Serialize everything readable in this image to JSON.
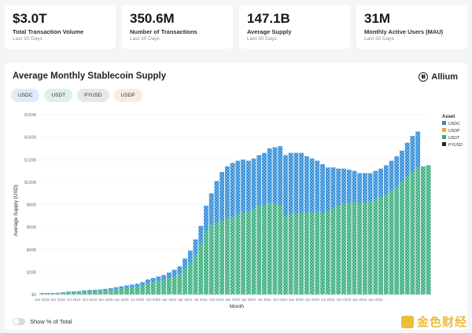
{
  "kpis": [
    {
      "value": "$3.0T",
      "label": "Total Transaction Volume",
      "sub": "Last 30 Days"
    },
    {
      "value": "350.6M",
      "label": "Number of Transactions",
      "sub": "Last 30 Days"
    },
    {
      "value": "147.1B",
      "label": "Average Supply",
      "sub": "Last 30 Days"
    },
    {
      "value": "31M",
      "label": "Monthly Active Users (MAU)",
      "sub": "Last 30 Days"
    }
  ],
  "panel": {
    "title": "Average Monthly Stablecoin Supply",
    "brand": "Allium"
  },
  "filters": [
    {
      "label": "USDC",
      "color": "#dcecf8"
    },
    {
      "label": "USDT",
      "color": "#dff0e7"
    },
    {
      "label": "PYUSD",
      "color": "#e6e8ec"
    },
    {
      "label": "USDP",
      "color": "#fbeadf"
    }
  ],
  "toggle": {
    "label": "Show % of Total"
  },
  "watermark": {
    "text": "金色财经"
  },
  "chart_data": {
    "type": "bar",
    "stacked": true,
    "title": "Average Monthly Stablecoin Supply",
    "xlabel": "Month",
    "ylabel": "Average Supply (USD)",
    "ylim": [
      0,
      160
    ],
    "yticks": [
      "$0",
      "$20B",
      "$40B",
      "$60B",
      "$80B",
      "$100B",
      "$120B",
      "$140B",
      "$160B"
    ],
    "xticks": [
      {
        "label": "Jan 2019",
        "index": 0
      },
      {
        "label": "Apr 2019",
        "index": 3
      },
      {
        "label": "Jul 2019",
        "index": 6
      },
      {
        "label": "Oct 2019",
        "index": 9
      },
      {
        "label": "Jan 2020",
        "index": 12
      },
      {
        "label": "Apr 2020",
        "index": 15
      },
      {
        "label": "Jul 2020",
        "index": 18
      },
      {
        "label": "Oct 2020",
        "index": 21
      },
      {
        "label": "Jan 2021",
        "index": 24
      },
      {
        "label": "Apr 2021",
        "index": 27
      },
      {
        "label": "Jul 2021",
        "index": 30
      },
      {
        "label": "Oct 2021",
        "index": 33
      },
      {
        "label": "Jan 2022",
        "index": 36
      },
      {
        "label": "Apr 2022",
        "index": 39
      },
      {
        "label": "Jul 2022",
        "index": 42
      },
      {
        "label": "Oct 2022",
        "index": 45
      },
      {
        "label": "Jan 2023",
        "index": 48
      },
      {
        "label": "Apr 2023",
        "index": 51
      },
      {
        "label": "Jul 2023",
        "index": 54
      },
      {
        "label": "Oct 2023",
        "index": 57
      },
      {
        "label": "Jan 2024",
        "index": 60
      },
      {
        "label": "Apr 2024",
        "index": 63
      }
    ],
    "legend": {
      "title": "Asset",
      "position": "right"
    },
    "series": [
      {
        "name": "USDT",
        "color": "#2eaa77",
        "values": [
          1,
          1,
          1,
          1.2,
          1.5,
          2,
          2.2,
          2.5,
          3,
          3.2,
          3.4,
          3.6,
          4,
          4.5,
          5,
          5.5,
          6,
          6.5,
          7,
          8,
          10,
          11,
          12,
          13,
          14.5,
          16,
          18,
          23,
          28,
          36,
          45,
          57,
          62,
          64,
          66,
          68,
          69,
          71,
          73,
          74,
          76,
          79,
          80,
          82,
          81,
          80,
          70,
          71,
          72,
          73,
          73,
          73,
          74,
          73,
          75,
          77,
          79,
          81,
          82,
          82,
          81,
          82,
          83,
          85,
          87,
          89,
          92,
          96,
          100,
          105,
          109,
          113,
          114,
          115
        ]
      },
      {
        "name": "USDC",
        "color": "#2386d6",
        "values": [
          0.3,
          0.3,
          0.3,
          0.4,
          0.5,
          0.6,
          0.6,
          0.6,
          0.7,
          0.8,
          0.8,
          0.9,
          1,
          1.2,
          1.5,
          1.8,
          2,
          2.3,
          2.6,
          3,
          3.4,
          3.7,
          4,
          4.3,
          5,
          6,
          7,
          9,
          11,
          13,
          16,
          22,
          28,
          37,
          43,
          46,
          48,
          48,
          47,
          45,
          45,
          45,
          46,
          48,
          50,
          52,
          54,
          55,
          54,
          53,
          50,
          48,
          45,
          43,
          38,
          36,
          33,
          31,
          29,
          28,
          27,
          26,
          25,
          25,
          25,
          26,
          27,
          27,
          28,
          30,
          32,
          32
        ]
      },
      {
        "name": "USDP",
        "color": "#f0a23a",
        "values": [
          0,
          0,
          0,
          0,
          0,
          0,
          0,
          0,
          0,
          0,
          0,
          0,
          0,
          0,
          0,
          0,
          0,
          0,
          0,
          0,
          0,
          0,
          0,
          0,
          0,
          0,
          0,
          0,
          0,
          0,
          0,
          0,
          0,
          0,
          0,
          0,
          0,
          0,
          0,
          0,
          0,
          0,
          0,
          0,
          0,
          0,
          0,
          0,
          0,
          0,
          0,
          0,
          0,
          0,
          0,
          0,
          0,
          0,
          0,
          0,
          0,
          0,
          0,
          0,
          0,
          0,
          0,
          0,
          0,
          0,
          0,
          0
        ]
      },
      {
        "name": "PYUSD",
        "color": "#1f2328",
        "values": [
          0,
          0,
          0,
          0,
          0,
          0,
          0,
          0,
          0,
          0,
          0,
          0,
          0,
          0,
          0,
          0,
          0,
          0,
          0,
          0,
          0,
          0,
          0,
          0,
          0,
          0,
          0,
          0,
          0,
          0,
          0,
          0,
          0,
          0,
          0,
          0,
          0,
          0,
          0,
          0,
          0,
          0,
          0,
          0,
          0,
          0,
          0,
          0,
          0,
          0,
          0,
          0,
          0,
          0,
          0,
          0,
          0,
          0,
          0,
          0,
          0,
          0,
          0,
          0,
          0,
          0,
          0,
          0,
          0,
          0,
          0,
          0
        ]
      }
    ],
    "legend_order": [
      "USDC",
      "USDP",
      "USDT",
      "PYUSD"
    ]
  }
}
